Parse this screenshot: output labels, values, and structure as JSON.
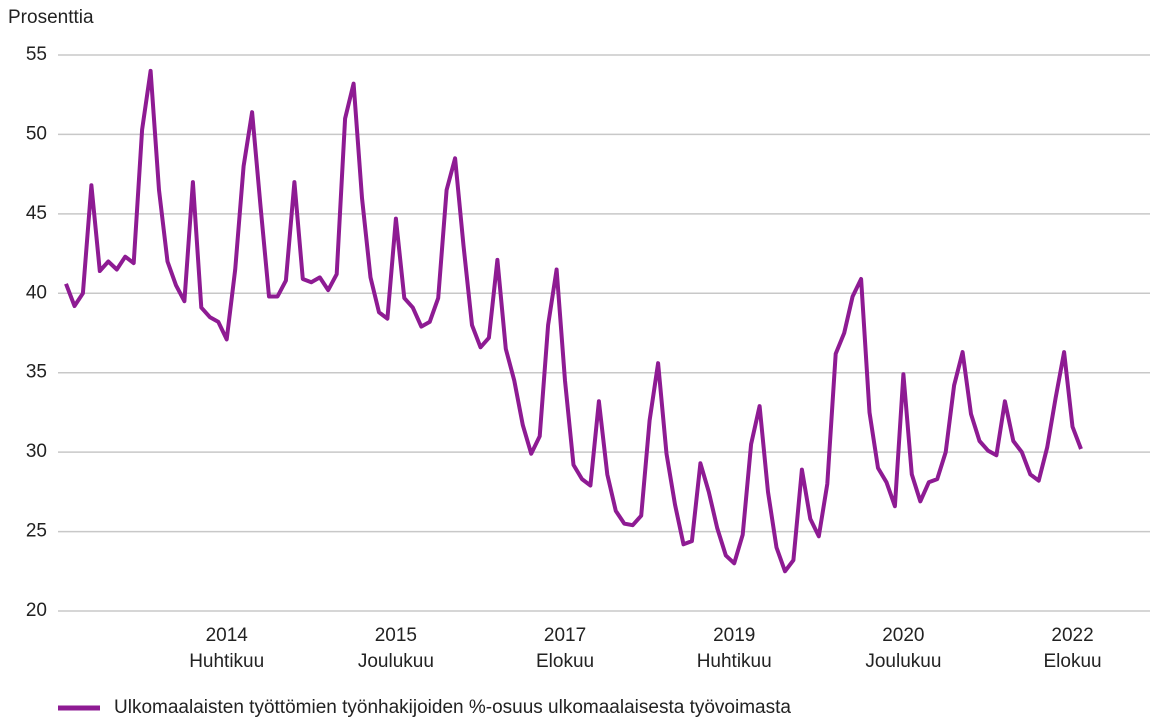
{
  "chart_data": {
    "type": "line",
    "y_label": "Prosenttia",
    "categories": [
      null,
      null,
      null,
      null,
      null,
      null,
      null,
      null,
      null,
      null,
      null,
      null,
      null,
      null,
      null,
      null,
      null,
      null,
      null,
      [
        "2014",
        "Huhtikuu"
      ],
      null,
      null,
      null,
      null,
      null,
      null,
      null,
      null,
      null,
      null,
      null,
      null,
      null,
      null,
      null,
      null,
      null,
      null,
      null,
      [
        "2015",
        "Joulukuu"
      ],
      null,
      null,
      null,
      null,
      null,
      null,
      null,
      null,
      null,
      null,
      null,
      null,
      null,
      null,
      null,
      null,
      null,
      null,
      null,
      [
        "2017",
        "Elokuu"
      ],
      null,
      null,
      null,
      null,
      null,
      null,
      null,
      null,
      null,
      null,
      null,
      null,
      null,
      null,
      null,
      null,
      null,
      null,
      null,
      [
        "2019",
        "Huhtikuu"
      ],
      null,
      null,
      null,
      null,
      null,
      null,
      null,
      null,
      null,
      null,
      null,
      null,
      null,
      null,
      null,
      null,
      null,
      null,
      null,
      [
        "2020",
        "Joulukuu"
      ],
      null,
      null,
      null,
      null,
      null,
      null,
      null,
      null,
      null,
      null,
      null,
      null,
      null,
      null,
      null,
      null,
      null,
      null,
      null,
      [
        "2022",
        "Elokuu"
      ],
      null
    ],
    "series": [
      {
        "name": "Ulkomaalaisten työttömien työnhakijoiden %-osuus ulkomaalaisesta työvoimasta",
        "color": "#8e1b93",
        "values": [
          40.6,
          39.2,
          40.0,
          46.8,
          41.4,
          42.0,
          41.5,
          42.3,
          41.9,
          50.3,
          54.0,
          46.5,
          42.0,
          40.5,
          39.5,
          47.0,
          39.1,
          38.5,
          38.2,
          37.1,
          41.5,
          48.0,
          51.4,
          45.5,
          39.8,
          39.8,
          40.8,
          47.0,
          40.9,
          40.7,
          41.0,
          40.2,
          41.2,
          51.0,
          53.2,
          46.0,
          41.0,
          38.8,
          38.4,
          44.7,
          39.7,
          39.1,
          37.9,
          38.2,
          39.7,
          46.5,
          48.5,
          43.0,
          38.0,
          36.6,
          37.2,
          42.1,
          36.5,
          34.5,
          31.7,
          29.9,
          31.0,
          38.0,
          41.5,
          34.5,
          29.2,
          28.3,
          27.9,
          33.2,
          28.6,
          26.3,
          25.5,
          25.4,
          26.0,
          32.0,
          35.6,
          29.9,
          26.7,
          24.2,
          24.4,
          29.3,
          27.5,
          25.2,
          23.5,
          23.0,
          24.8,
          30.5,
          32.9,
          27.5,
          24.0,
          22.5,
          23.2,
          28.9,
          25.8,
          24.7,
          28.0,
          36.2,
          37.5,
          39.8,
          40.9,
          32.5,
          29.0,
          28.1,
          26.6,
          34.9,
          28.6,
          26.9,
          28.1,
          28.3,
          30.0,
          34.2,
          36.3,
          32.4,
          30.7,
          30.1,
          29.8,
          33.2,
          30.7,
          30.0,
          28.6,
          28.2,
          30.3,
          33.4,
          36.3,
          31.6,
          30.2
        ]
      }
    ],
    "ylim": [
      20,
      55
    ],
    "yticks": [
      20,
      25,
      30,
      35,
      40,
      45,
      50,
      55
    ],
    "grid": true
  }
}
